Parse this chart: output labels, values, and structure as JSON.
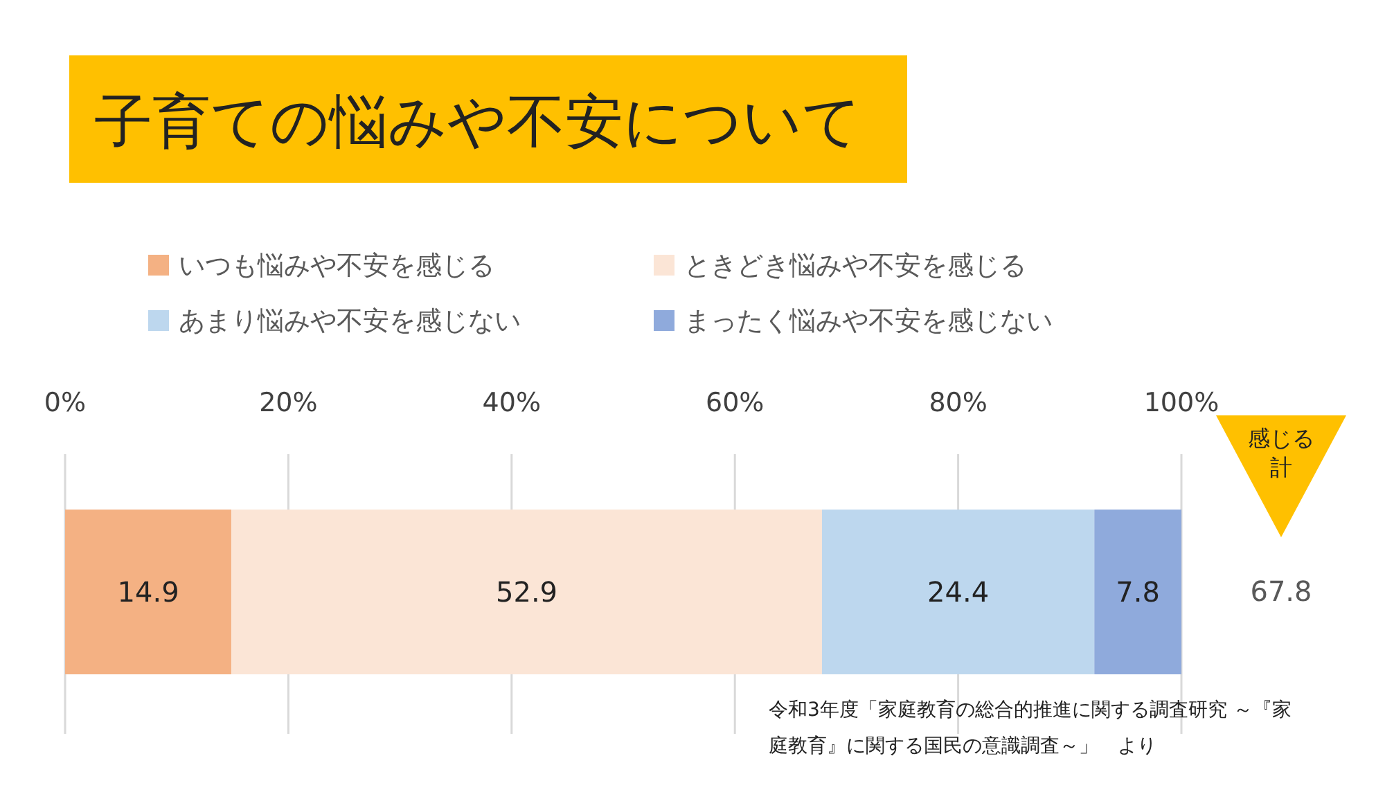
{
  "chart_data": {
    "type": "bar",
    "orientation": "horizontal",
    "stacked": true,
    "title": "子育ての悩みや不安について",
    "categories": [
      null
    ],
    "series": [
      {
        "name": "いつも悩みや不安を感じる",
        "color": "#f4b183",
        "values": [
          14.9
        ]
      },
      {
        "name": "ときどき悩みや不安を感じる",
        "color": "#fbe5d6",
        "values": [
          52.9
        ]
      },
      {
        "name": "あまり悩みや不安を感じない",
        "color": "#bdd7ee",
        "values": [
          24.4
        ]
      },
      {
        "name": "まったく悩みや不安を感じない",
        "color": "#8faadc",
        "values": [
          7.8
        ]
      }
    ],
    "xlim": [
      0,
      100
    ],
    "xticks": [
      {
        "value": 0,
        "label": "0%"
      },
      {
        "value": 20,
        "label": "20%"
      },
      {
        "value": 40,
        "label": "40%"
      },
      {
        "value": 60,
        "label": "60%"
      },
      {
        "value": 80,
        "label": "80%"
      },
      {
        "value": 100,
        "label": "100%"
      }
    ],
    "grid": "x",
    "legend": "top",
    "data_labels": true,
    "annotations": [
      "感じる計",
      "67.8",
      "令和3年度「家庭教育の総合的推進に関する調査研究 ～『家庭教育』に関する国民の意識調査～」　より"
    ]
  }
}
